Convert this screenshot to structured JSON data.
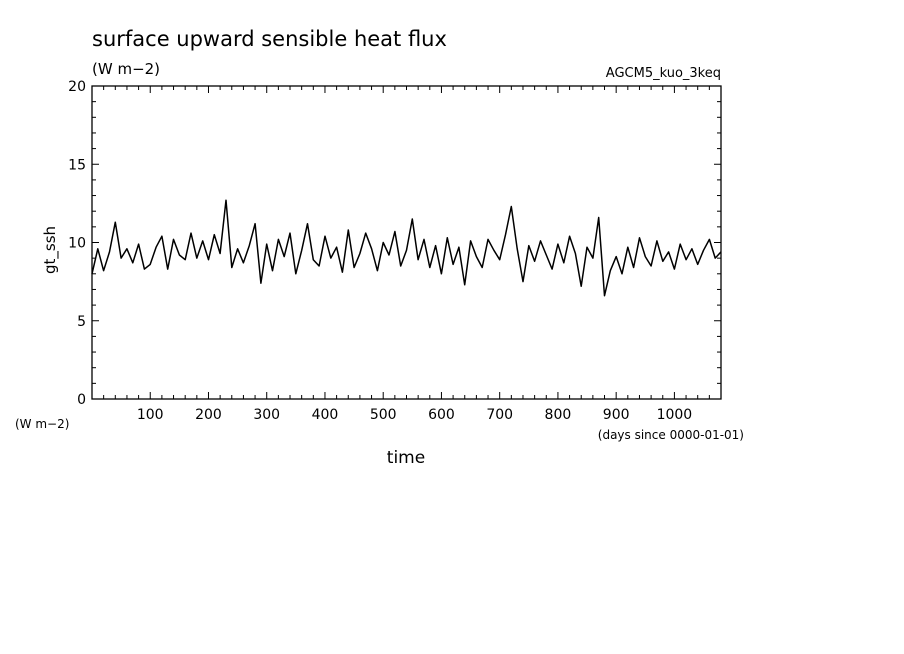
{
  "chart_data": {
    "type": "line",
    "title": "surface upward sensible heat flux",
    "units": "(W m−2)",
    "experiment": "AGCM5_kuo_3keq",
    "xlabel": "time",
    "xunits": "(days since 0000-01-01)",
    "ylabel": "gt_ssh",
    "yunits": "(W m−2)",
    "xlim": [
      0,
      1080
    ],
    "ylim": [
      0,
      20
    ],
    "xticks": [
      100,
      200,
      300,
      400,
      500,
      600,
      700,
      800,
      900,
      1000
    ],
    "yticks": [
      0,
      5,
      10,
      15,
      20
    ],
    "grid": false,
    "series": [
      {
        "x": [
          0,
          10,
          20,
          30,
          40,
          50,
          60,
          70,
          80,
          90,
          100,
          110,
          120,
          130,
          140,
          150,
          160,
          170,
          180,
          190,
          200,
          210,
          220,
          230,
          240,
          250,
          260,
          270,
          280,
          290,
          300,
          310,
          320,
          330,
          340,
          350,
          360,
          370,
          380,
          390,
          400,
          410,
          420,
          430,
          440,
          450,
          460,
          470,
          480,
          490,
          500,
          510,
          520,
          530,
          540,
          550,
          560,
          570,
          580,
          590,
          600,
          610,
          620,
          630,
          640,
          650,
          660,
          670,
          680,
          690,
          700,
          710,
          720,
          730,
          740,
          750,
          760,
          770,
          780,
          790,
          800,
          810,
          820,
          830,
          840,
          850,
          860,
          870,
          880,
          890,
          900,
          910,
          920,
          930,
          940,
          950,
          960,
          970,
          980,
          990,
          1000,
          1010,
          1020,
          1030,
          1040,
          1050,
          1060,
          1070,
          1080
        ],
        "values": [
          8.0,
          9.6,
          8.2,
          9.4,
          11.3,
          9.0,
          9.6,
          8.7,
          9.9,
          8.3,
          8.6,
          9.7,
          10.4,
          8.3,
          10.2,
          9.2,
          8.9,
          10.6,
          9.0,
          10.1,
          8.9,
          10.5,
          9.3,
          12.7,
          8.4,
          9.6,
          8.7,
          9.8,
          11.2,
          7.4,
          9.9,
          8.2,
          10.2,
          9.1,
          10.6,
          8.0,
          9.5,
          11.2,
          8.9,
          8.5,
          10.4,
          9.0,
          9.7,
          8.1,
          10.8,
          8.4,
          9.3,
          10.6,
          9.6,
          8.2,
          10.0,
          9.2,
          10.7,
          8.5,
          9.5,
          11.5,
          8.9,
          10.2,
          8.4,
          9.8,
          8.0,
          10.3,
          8.6,
          9.7,
          7.3,
          10.1,
          9.1,
          8.4,
          10.2,
          9.5,
          8.9,
          10.5,
          12.3,
          9.6,
          7.5,
          9.8,
          8.8,
          10.1,
          9.2,
          8.3,
          9.9,
          8.7,
          10.4,
          9.3,
          7.2,
          9.7,
          9.0,
          11.6,
          6.6,
          8.2,
          9.1,
          8.0,
          9.7,
          8.4,
          10.3,
          9.1,
          8.5,
          10.1,
          8.8,
          9.4,
          8.3,
          9.9,
          8.9,
          9.6,
          8.6,
          9.5,
          10.2,
          9.0,
          9.4
        ]
      }
    ]
  }
}
